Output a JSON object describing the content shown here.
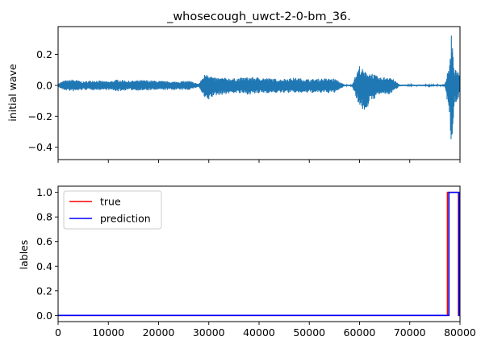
{
  "chart_data": [
    {
      "type": "line",
      "title": "_whosecough_uwct-2-0-bm_36.",
      "xlabel": "",
      "ylabel": "initial wave",
      "xlim": [
        0,
        80000
      ],
      "ylim": [
        -0.48,
        0.38
      ],
      "yticks": [
        "0.2",
        "0.0",
        "−0.2",
        "−0.4"
      ],
      "ytick_values": [
        0.2,
        0.0,
        -0.2,
        -0.4
      ],
      "xtick_values": [
        0,
        10000,
        20000,
        30000,
        40000,
        50000,
        60000,
        70000,
        80000
      ],
      "xtick_labels_visible": false,
      "grid": false,
      "series": [
        {
          "color": "#1f77b4",
          "envelope": {
            "x": [
              0,
              1000,
              3000,
              5000,
              7000,
              10000,
              12000,
              14000,
              17000,
              20000,
              23000,
              26000,
              28000,
              29500,
              31000,
              33000,
              35000,
              38000,
              41000,
              44000,
              47000,
              50000,
              53000,
              55000,
              57000,
              58500,
              60000,
              61000,
              62500,
              64000,
              66000,
              68000,
              70000,
              72000,
              74000,
              76000,
              77000,
              78000,
              78300,
              78600,
              79000,
              79500,
              80000
            ],
            "upper": [
              0.01,
              0.03,
              0.04,
              0.025,
              0.035,
              0.025,
              0.04,
              0.03,
              0.035,
              0.03,
              0.025,
              0.03,
              0.01,
              0.09,
              0.05,
              0.05,
              0.045,
              0.055,
              0.05,
              0.04,
              0.05,
              0.04,
              0.045,
              0.045,
              0.005,
              0.005,
              0.13,
              0.09,
              0.08,
              0.05,
              0.06,
              0.005,
              0.005,
              0.005,
              0.005,
              0.005,
              0.01,
              0.15,
              0.36,
              0.2,
              0.1,
              0.1,
              0.05
            ],
            "lower": [
              -0.01,
              -0.03,
              -0.04,
              -0.03,
              -0.03,
              -0.03,
              -0.04,
              -0.03,
              -0.035,
              -0.03,
              -0.03,
              -0.03,
              -0.01,
              -0.11,
              -0.07,
              -0.06,
              -0.05,
              -0.06,
              -0.05,
              -0.05,
              -0.05,
              -0.05,
              -0.05,
              -0.05,
              -0.005,
              -0.005,
              -0.14,
              -0.17,
              -0.1,
              -0.06,
              -0.06,
              -0.005,
              -0.005,
              -0.005,
              -0.005,
              -0.005,
              -0.01,
              -0.2,
              -0.46,
              -0.25,
              -0.12,
              -0.1,
              -0.05
            ]
          }
        }
      ]
    },
    {
      "type": "line",
      "title": "",
      "xlabel": "",
      "ylabel": "lables",
      "xlim": [
        0,
        80000
      ],
      "ylim": [
        -0.05,
        1.05
      ],
      "yticks": [
        "0.0",
        "0.2",
        "0.4",
        "0.6",
        "0.8",
        "1.0"
      ],
      "ytick_values": [
        0.0,
        0.2,
        0.4,
        0.6,
        0.8,
        1.0
      ],
      "xtick_values": [
        0,
        10000,
        20000,
        30000,
        40000,
        50000,
        60000,
        70000,
        80000
      ],
      "xtick_labels": [
        "0",
        "10000",
        "20000",
        "30000",
        "40000",
        "50000",
        "60000",
        "70000",
        "80000"
      ],
      "grid": false,
      "legend": {
        "placement": "upper-left"
      },
      "series": [
        {
          "name": "true",
          "color": "#ff0000",
          "x": [
            0,
            77500,
            77500,
            79700,
            79700,
            80000
          ],
          "y": [
            0,
            0,
            1,
            1,
            0,
            0
          ]
        },
        {
          "name": "prediction",
          "color": "#0000ff",
          "x": [
            0,
            77800,
            77800,
            79800,
            79800,
            80000
          ],
          "y": [
            0,
            0,
            1,
            1,
            0,
            0
          ]
        }
      ]
    }
  ]
}
